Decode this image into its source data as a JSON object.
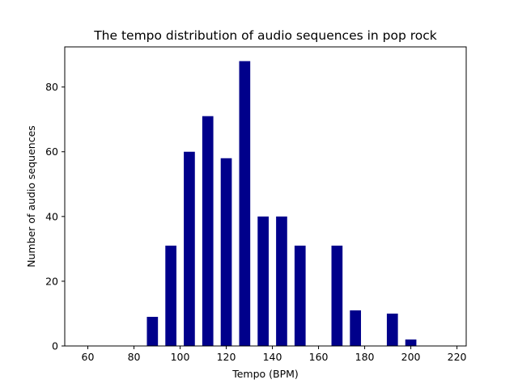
{
  "chart_data": {
    "type": "bar",
    "title": "The tempo distribution of audio sequences in pop rock",
    "xlabel": "Tempo (BPM)",
    "ylabel": "Number of audio sequences",
    "xlim": [
      50,
      224
    ],
    "ylim": [
      0,
      92.4
    ],
    "xticks": [
      60,
      80,
      100,
      120,
      140,
      160,
      180,
      200,
      220
    ],
    "yticks": [
      0,
      20,
      40,
      60,
      80
    ],
    "bar_width": 4.8,
    "bar_color": "#00008b",
    "x": [
      88,
      96,
      104,
      112,
      120,
      128,
      136,
      144,
      152,
      160,
      168,
      176,
      184,
      192,
      200
    ],
    "values": [
      9,
      31,
      60,
      71,
      58,
      88,
      40,
      40,
      31,
      0,
      31,
      11,
      0,
      10,
      2
    ],
    "grid": false,
    "legend": "none"
  }
}
